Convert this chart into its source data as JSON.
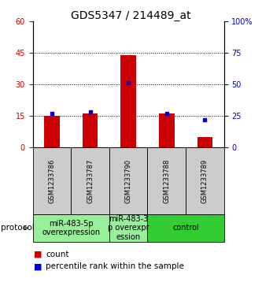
{
  "title": "GDS5347 / 214489_at",
  "samples": [
    "GSM1233786",
    "GSM1233787",
    "GSM1233790",
    "GSM1233788",
    "GSM1233789"
  ],
  "counts": [
    15,
    16,
    44,
    16,
    5
  ],
  "percentiles": [
    27,
    28,
    51,
    27,
    22
  ],
  "ylim_left": [
    0,
    60
  ],
  "ylim_right": [
    0,
    100
  ],
  "yticks_left": [
    0,
    15,
    30,
    45,
    60
  ],
  "ytick_labels_left": [
    "0",
    "15",
    "30",
    "45",
    "60"
  ],
  "yticks_right": [
    0,
    25,
    50,
    75,
    100
  ],
  "ytick_labels_right": [
    "0",
    "25",
    "50",
    "75",
    "100%"
  ],
  "bar_color": "#cc0000",
  "dot_color": "#0000cc",
  "title_fontsize": 10,
  "tick_fontsize": 7,
  "group_fontsize": 7,
  "sample_fontsize": 6,
  "legend_fontsize": 7.5,
  "bg_color": "#ffffff",
  "sample_box_color": "#cccccc",
  "group_configs": [
    {
      "indices": [
        0,
        1
      ],
      "label": "miR-483-5p\noverexpression",
      "color": "#99ee99"
    },
    {
      "indices": [
        2
      ],
      "label": "miR-483-3\np overexpr\nession",
      "color": "#99ee99"
    },
    {
      "indices": [
        3,
        4
      ],
      "label": "control",
      "color": "#33cc33"
    }
  ],
  "protocol_label": "protocol",
  "legend_count_label": "count",
  "legend_percentile_label": "percentile rank within the sample",
  "grid_yticks": [
    15,
    30,
    45
  ]
}
